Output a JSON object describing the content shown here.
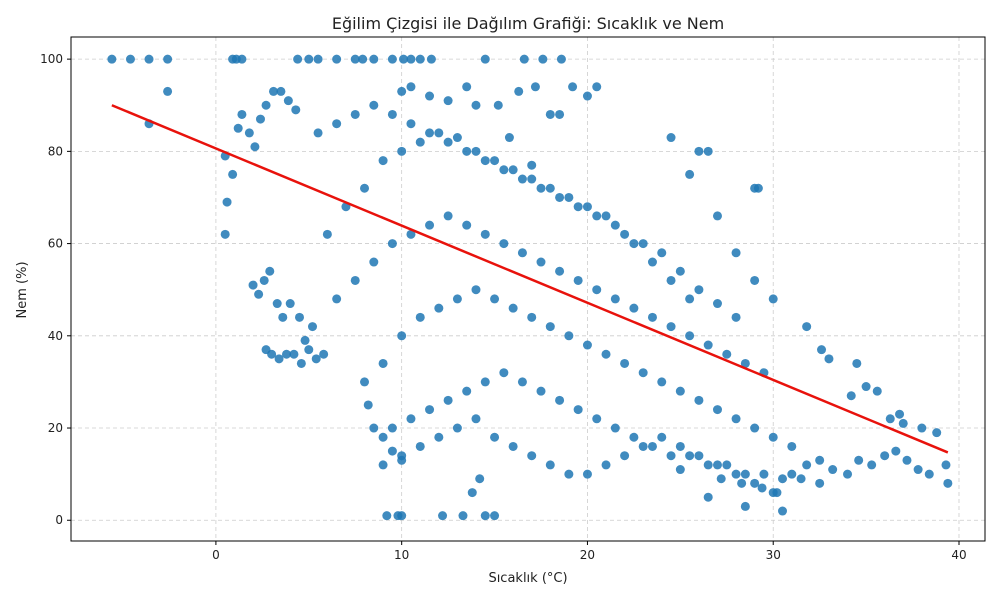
{
  "chart_data": {
    "type": "scatter",
    "title": "Eğilim Çizgisi ile Dağılım Grafiği: Sıcaklık ve Nem",
    "xlabel": "Sıcaklık (°C)",
    "ylabel": "Nem (%)",
    "xlim": [
      -7.8,
      41.4
    ],
    "ylim": [
      -4.5,
      104.8
    ],
    "xticks": [
      0,
      10,
      20,
      30,
      40
    ],
    "yticks": [
      0,
      20,
      40,
      60,
      80,
      100
    ],
    "grid": true,
    "grid_style": "dashed",
    "legend": "none",
    "colors": {
      "points": "#1f77b4",
      "trend": "#e8120c",
      "grid": "#cccccc",
      "axis": "#000000"
    },
    "series": [
      {
        "kind": "points",
        "x": [
          -5.6,
          -4.6,
          -3.6,
          -2.6,
          0.9,
          1.1,
          1.4,
          4.4,
          5.0,
          5.5,
          6.5,
          7.5,
          7.9,
          8.5,
          9.5,
          10.1,
          10.5,
          11.0,
          11.6,
          14.5,
          16.6,
          17.6,
          18.6,
          -3.6,
          -2.6,
          0.5,
          0.6,
          0.5,
          0.9,
          1.2,
          1.4,
          1.8,
          2.1,
          2.4,
          2.7,
          3.1,
          3.5,
          3.9,
          4.3,
          2.0,
          2.3,
          2.6,
          2.9,
          3.3,
          3.6,
          4.0,
          4.5,
          4.8,
          5.2,
          2.7,
          3.0,
          3.4,
          3.8,
          4.2,
          4.6,
          5.0,
          5.4,
          5.8,
          8.2,
          8.5,
          9.0,
          9.5,
          10.0,
          9.2,
          9.8,
          10.0,
          12.2,
          13.3,
          14.5,
          15.0,
          13.8,
          14.2,
          10.0,
          10.5,
          11.5,
          12.5,
          13.5,
          15.2,
          16.3,
          17.2,
          18.0,
          19.2,
          20.5,
          15.8,
          17.0,
          18.5,
          14.0,
          20.0,
          24.5,
          26.5,
          29.2,
          29.0,
          25.5,
          26.0,
          27.0,
          28.0,
          29.0,
          30.0,
          25.0,
          26.5,
          28.5,
          30.5,
          27.2,
          28.3,
          29.4,
          30.2,
          31.0,
          31.8,
          32.5,
          33.2,
          34.0,
          34.6,
          35.3,
          36.0,
          36.6,
          37.2,
          37.8,
          38.4,
          39.3,
          39.4,
          36.3,
          37.0,
          38.0,
          38.8,
          34.2,
          35.0,
          33.0,
          31.8,
          32.6,
          34.5,
          35.6,
          36.8,
          6.0,
          7.0,
          8.0,
          9.0,
          10.0,
          11.0,
          12.0,
          13.0,
          14.0,
          15.0,
          16.0,
          17.0,
          18.0,
          19.0,
          20.0,
          21.0,
          22.0,
          23.0,
          24.0,
          25.0,
          26.0,
          27.0,
          28.0,
          6.5,
          7.5,
          8.5,
          9.5,
          10.5,
          11.5,
          12.5,
          13.5,
          14.5,
          15.5,
          16.5,
          17.5,
          18.5,
          19.5,
          20.5,
          21.5,
          22.5,
          23.5,
          24.5,
          25.5,
          26.5,
          27.5,
          28.5,
          29.5,
          8.0,
          9.0,
          10.0,
          11.0,
          12.0,
          13.0,
          14.0,
          15.0,
          16.0,
          17.0,
          18.0,
          19.0,
          20.0,
          21.0,
          22.0,
          23.0,
          24.0,
          25.0,
          26.0,
          27.0,
          28.0,
          29.0,
          30.0,
          31.0,
          9.5,
          10.5,
          11.5,
          12.5,
          13.5,
          14.5,
          15.5,
          16.5,
          17.5,
          18.5,
          19.5,
          20.5,
          21.5,
          22.5,
          23.5,
          24.5,
          25.5,
          26.5,
          27.5,
          28.5,
          29.5,
          30.5,
          31.5,
          32.5,
          5.5,
          6.5,
          7.5,
          8.5,
          9.5,
          10.5,
          11.5,
          12.5,
          13.5,
          14.5,
          15.5,
          16.5,
          17.5,
          18.5,
          19.5,
          20.5,
          21.5,
          22.5,
          23.5,
          24.5,
          25.5,
          9.0,
          10.0,
          11.0,
          12.0,
          13.0,
          14.0,
          15.0,
          16.0,
          17.0,
          18.0,
          19.0,
          20.0,
          21.0,
          22.0,
          23.0,
          24.0,
          25.0,
          26.0,
          27.0,
          28.0,
          29.0,
          30.0
        ],
        "y": [
          100,
          100,
          100,
          100,
          100,
          100,
          100,
          100,
          100,
          100,
          100,
          100,
          100,
          100,
          100,
          100,
          100,
          100,
          100,
          100,
          100,
          100,
          100,
          86,
          93,
          79,
          69,
          62,
          75,
          85,
          88,
          84,
          81,
          87,
          90,
          93,
          93,
          91,
          89,
          51,
          49,
          52,
          54,
          47,
          44,
          47,
          44,
          39,
          42,
          37,
          36,
          35,
          36,
          36,
          34,
          37,
          35,
          36,
          25,
          20,
          18,
          15,
          13,
          1,
          1,
          1,
          1,
          1,
          1,
          1,
          6,
          9,
          93,
          94,
          92,
          91,
          94,
          90,
          93,
          94,
          88,
          94,
          94,
          83,
          77,
          88,
          90,
          92,
          83,
          80,
          72,
          72,
          75,
          80,
          66,
          58,
          52,
          48,
          11,
          5,
          3,
          2,
          9,
          8,
          7,
          6,
          10,
          12,
          13,
          11,
          10,
          13,
          12,
          14,
          15,
          13,
          11,
          10,
          12,
          8,
          22,
          21,
          20,
          19,
          27,
          29,
          35,
          42,
          37,
          34,
          28,
          23,
          62,
          68,
          72,
          78,
          80,
          82,
          84,
          83,
          80,
          78,
          76,
          74,
          72,
          70,
          68,
          66,
          62,
          60,
          58,
          54,
          50,
          47,
          44,
          48,
          52,
          56,
          60,
          62,
          64,
          66,
          64,
          62,
          60,
          58,
          56,
          54,
          52,
          50,
          48,
          46,
          44,
          42,
          40,
          38,
          36,
          34,
          32,
          30,
          34,
          40,
          44,
          46,
          48,
          50,
          48,
          46,
          44,
          42,
          40,
          38,
          36,
          34,
          32,
          30,
          28,
          26,
          24,
          22,
          20,
          18,
          16,
          20,
          22,
          24,
          26,
          28,
          30,
          32,
          30,
          28,
          26,
          24,
          22,
          20,
          18,
          16,
          14,
          14,
          12,
          12,
          10,
          10,
          9,
          9,
          8,
          84,
          86,
          88,
          90,
          88,
          86,
          84,
          82,
          80,
          78,
          76,
          74,
          72,
          70,
          68,
          66,
          64,
          60,
          56,
          52,
          48,
          12,
          14,
          16,
          18,
          20,
          22,
          18,
          16,
          14,
          12,
          10,
          10,
          12,
          14,
          16,
          18,
          16,
          14,
          12,
          10,
          8,
          6
        ]
      },
      {
        "kind": "trend",
        "x": [
          -5.6,
          39.4
        ],
        "y": [
          90.0,
          14.7
        ]
      }
    ]
  }
}
